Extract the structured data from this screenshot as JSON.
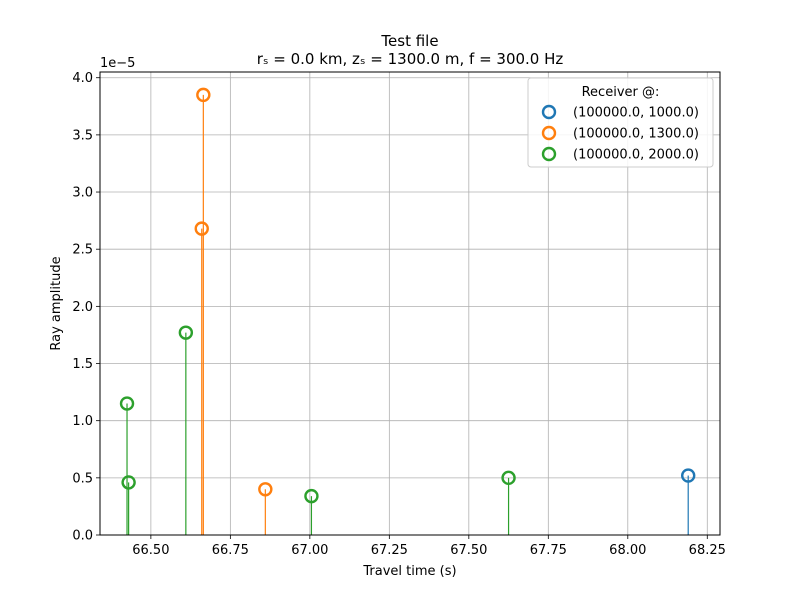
{
  "chart_data": {
    "type": "scatter",
    "title": "Test file",
    "subtitle": "rₛ = 0.0 km, zₛ = 1300.0 m, f = 300.0 Hz",
    "xlabel": "Travel time (s)",
    "ylabel": "Ray amplitude",
    "y_offset_label": "1e−5",
    "xlim": [
      66.34,
      68.29
    ],
    "ylim": [
      0,
      4.05
    ],
    "x_ticks": [
      "66.50",
      "66.75",
      "67.00",
      "67.25",
      "67.50",
      "67.75",
      "68.00",
      "68.25"
    ],
    "y_ticks": [
      "0.0",
      "0.5",
      "1.0",
      "1.5",
      "2.0",
      "2.5",
      "3.0",
      "3.5",
      "4.0"
    ],
    "grid": true,
    "legend": {
      "title": "Receiver @:",
      "placement": "top-right"
    },
    "series": [
      {
        "name": "(100000.0, 1000.0)",
        "color": "#1f77b4",
        "points": [
          {
            "x": 68.19,
            "y": 0.52
          }
        ]
      },
      {
        "name": "(100000.0, 1300.0)",
        "color": "#ff7f0e",
        "points": [
          {
            "x": 66.665,
            "y": 3.85
          },
          {
            "x": 66.66,
            "y": 2.68
          },
          {
            "x": 66.86,
            "y": 0.4
          }
        ]
      },
      {
        "name": "(100000.0, 2000.0)",
        "color": "#2ca02c",
        "points": [
          {
            "x": 66.425,
            "y": 1.15
          },
          {
            "x": 66.43,
            "y": 0.46
          },
          {
            "x": 66.61,
            "y": 1.77
          },
          {
            "x": 67.005,
            "y": 0.34
          },
          {
            "x": 67.625,
            "y": 0.5
          }
        ]
      }
    ]
  }
}
